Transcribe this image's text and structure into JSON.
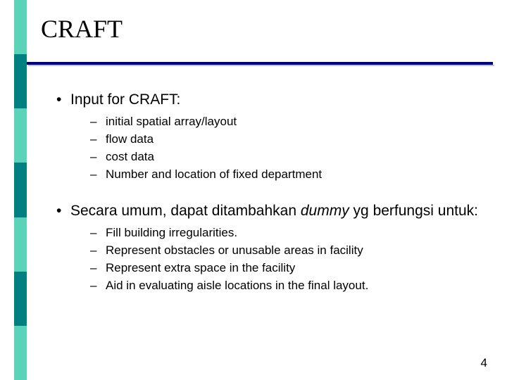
{
  "slide": {
    "title": "CRAFT",
    "pageNumber": "4"
  },
  "stripe": {
    "colors": [
      "#5bd3b8",
      "#008080",
      "#5bd3b8",
      "#008080",
      "#5bd3b8",
      "#008080",
      "#5bd3b8"
    ]
  },
  "bullets": [
    {
      "text": "Input for CRAFT:",
      "sub": [
        "initial spatial array/layout",
        "flow data",
        "cost data",
        "Number and location of fixed department"
      ]
    },
    {
      "prefix": "Secara umum, dapat ditambahkan ",
      "italic": "dummy",
      "suffix": " yg berfungsi untuk:",
      "sub": [
        "Fill building irregularities.",
        "Represent obstacles or unusable areas in facility",
        "Represent extra space in the facility",
        "Aid in evaluating aisle locations in the final layout."
      ]
    }
  ],
  "style": {
    "titleFontSize": 36,
    "lvl1FontSize": 21,
    "lvl2FontSize": 17,
    "underlineColor": "#000080",
    "bgColor": "#ffffff"
  }
}
